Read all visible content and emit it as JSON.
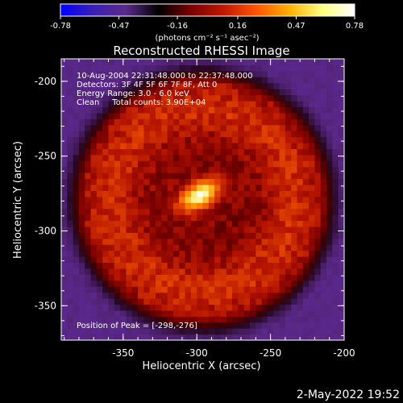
{
  "chart_data": {
    "type": "heatmap",
    "title": "Reconstructed RHESSI Image",
    "xlabel": "Heliocentric X (arcsec)",
    "ylabel": "Heliocentric Y (arcsec)",
    "xlim": [
      -392,
      -200
    ],
    "ylim": [
      -373,
      -185
    ],
    "xticks": [
      "-350",
      "-300",
      "-250",
      "-200"
    ],
    "xtick_values": [
      -350,
      -300,
      -250,
      -200
    ],
    "yticks": [
      "-200",
      "-250",
      "-300",
      "-350"
    ],
    "ytick_values": [
      -200,
      -250,
      -300,
      -350
    ],
    "colorbar": {
      "range": [
        -0.78,
        0.78
      ],
      "ticks": [
        "-0.78",
        "-0.47",
        "-0.16",
        "0.16",
        "0.47",
        "0.78"
      ],
      "tick_values": [
        -0.78,
        -0.47,
        -0.16,
        0.16,
        0.47,
        0.78
      ],
      "label": "(photons cm⁻² s⁻¹ asec⁻²)",
      "colors": [
        "#0000ff",
        "#3b1fb5",
        "#5b2a8a",
        "#000000",
        "#7a0000",
        "#c01800",
        "#ff5500",
        "#ffb000",
        "#ffff80",
        "#ffffff"
      ]
    },
    "info_lines": [
      "10-Aug-2004 22:31:48.000 to 22:37:48.000",
      "Detectors: 3F 4F 5F 6F 7F 8F, Att 0",
      "Energy Range: 3.0 - 6.0 keV",
      "Clean     Total counts: 3.90E+04"
    ],
    "peak_text": "Position of Peak = [-298,-276]",
    "peak": {
      "x": -298,
      "y": -276,
      "value": 0.78
    },
    "ring_center": {
      "x": -296,
      "y": -279
    },
    "ring_radius_arcsec": 80,
    "background_value": -0.35
  },
  "timestamp": "2-May-2022 19:52"
}
